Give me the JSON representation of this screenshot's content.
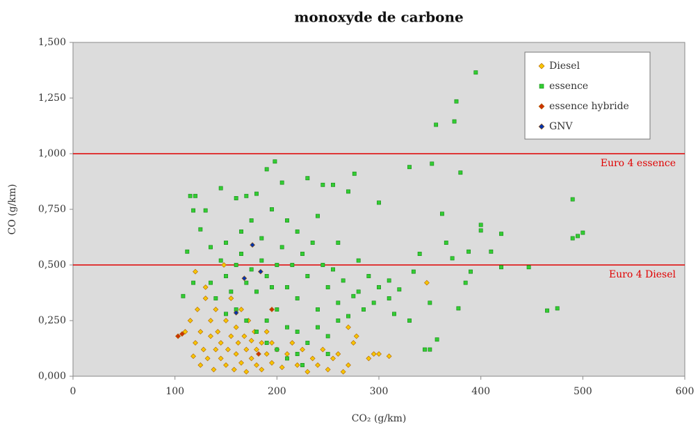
{
  "chart_data": {
    "type": "scatter",
    "title": "monoxyde de carbone",
    "xlabel": "CO₂ (g/km)",
    "ylabel": "CO (g/km)",
    "xlim": [
      0,
      600
    ],
    "xticks": [
      0,
      100,
      200,
      300,
      400,
      500,
      600
    ],
    "ylim": [
      0,
      1.5
    ],
    "yticks": [
      {
        "value": 0,
        "label": "0,000"
      },
      {
        "value": 0.25,
        "label": "0,250"
      },
      {
        "value": 0.5,
        "label": "0,500"
      },
      {
        "value": 0.75,
        "label": "0,750"
      },
      {
        "value": 1,
        "label": "1,000"
      },
      {
        "value": 1.25,
        "label": "1,250"
      },
      {
        "value": 1.5,
        "label": "1,500"
      }
    ],
    "legend_position": "upper right",
    "reference_lines": [
      {
        "value": 1,
        "label": "Euro 4 essence",
        "color": "#e00000"
      },
      {
        "value": 0.5,
        "label": "Euro 4 Diesel",
        "color": "#e00000"
      }
    ],
    "series": [
      {
        "name": "Diesel",
        "color": "#f7c600",
        "marker": "diamond",
        "x": [
          103,
          110,
          115,
          118,
          120,
          122,
          125,
          125,
          128,
          130,
          132,
          135,
          135,
          138,
          140,
          140,
          142,
          145,
          145,
          148,
          150,
          150,
          152,
          155,
          155,
          158,
          160,
          160,
          162,
          165,
          165,
          168,
          170,
          170,
          172,
          175,
          175,
          178,
          180,
          180,
          185,
          185,
          190,
          190,
          195,
          195,
          200,
          205,
          210,
          215,
          220,
          225,
          230,
          235,
          240,
          245,
          250,
          255,
          260,
          265,
          270,
          275,
          278,
          290,
          295,
          300,
          310,
          347,
          120,
          130,
          270
        ],
        "values": [
          0.18,
          0.2,
          0.25,
          0.09,
          0.15,
          0.3,
          0.05,
          0.2,
          0.12,
          0.35,
          0.08,
          0.18,
          0.25,
          0.03,
          0.12,
          0.3,
          0.2,
          0.08,
          0.15,
          0.5,
          0.25,
          0.05,
          0.12,
          0.18,
          0.35,
          0.03,
          0.1,
          0.22,
          0.15,
          0.06,
          0.3,
          0.18,
          0.12,
          0.02,
          0.25,
          0.08,
          0.16,
          0.2,
          0.05,
          0.12,
          0.15,
          0.03,
          0.1,
          0.2,
          0.06,
          0.15,
          0.12,
          0.04,
          0.1,
          0.15,
          0.05,
          0.12,
          0.02,
          0.08,
          0.05,
          0.12,
          0.03,
          0.08,
          0.1,
          0.02,
          0.05,
          0.15,
          0.18,
          0.08,
          0.1,
          0.1,
          0.09,
          0.42,
          0.47,
          0.4,
          0.22
        ]
      },
      {
        "name": "essence",
        "color": "#33cc33",
        "marker": "square",
        "x": [
          395,
          376,
          374,
          356,
          352,
          330,
          380,
          276,
          198,
          490,
          500,
          495,
          490,
          400,
          400,
          420,
          410,
          420,
          447,
          475,
          465,
          378,
          357,
          350,
          345,
          362,
          366,
          340,
          320,
          300,
          310,
          334,
          350,
          390,
          385,
          372,
          388,
          115,
          120,
          118,
          130,
          145,
          160,
          170,
          180,
          190,
          205,
          230,
          245,
          255,
          270,
          125,
          135,
          150,
          165,
          175,
          185,
          195,
          210,
          220,
          240,
          260,
          280,
          290,
          300,
          310,
          150,
          160,
          170,
          180,
          190,
          200,
          210,
          220,
          230,
          240,
          250,
          260,
          270,
          280,
          140,
          150,
          160,
          170,
          180,
          190,
          200,
          210,
          220,
          230,
          240,
          250,
          260,
          135,
          145,
          155,
          165,
          175,
          185,
          195,
          205,
          215,
          225,
          235,
          245,
          255,
          265,
          275,
          285,
          295,
          315,
          330,
          112,
          118,
          108,
          200,
          210,
          220,
          225,
          190,
          250
        ],
        "values": [
          1.365,
          1.235,
          1.145,
          1.13,
          0.955,
          0.94,
          0.915,
          0.91,
          0.965,
          0.795,
          0.645,
          0.63,
          0.62,
          0.68,
          0.655,
          0.64,
          0.56,
          0.49,
          0.49,
          0.305,
          0.295,
          0.305,
          0.165,
          0.12,
          0.12,
          0.73,
          0.6,
          0.55,
          0.39,
          0.78,
          0.43,
          0.47,
          0.33,
          0.47,
          0.42,
          0.53,
          0.56,
          0.81,
          0.81,
          0.745,
          0.745,
          0.845,
          0.8,
          0.81,
          0.82,
          0.93,
          0.87,
          0.89,
          0.86,
          0.86,
          0.83,
          0.66,
          0.58,
          0.6,
          0.65,
          0.7,
          0.62,
          0.75,
          0.7,
          0.65,
          0.72,
          0.6,
          0.52,
          0.45,
          0.4,
          0.35,
          0.45,
          0.5,
          0.42,
          0.38,
          0.45,
          0.5,
          0.4,
          0.35,
          0.45,
          0.3,
          0.4,
          0.33,
          0.27,
          0.38,
          0.35,
          0.28,
          0.3,
          0.25,
          0.2,
          0.25,
          0.3,
          0.22,
          0.2,
          0.15,
          0.22,
          0.18,
          0.25,
          0.42,
          0.52,
          0.38,
          0.55,
          0.48,
          0.52,
          0.4,
          0.58,
          0.5,
          0.55,
          0.6,
          0.5,
          0.48,
          0.43,
          0.36,
          0.3,
          0.33,
          0.28,
          0.25,
          0.56,
          0.42,
          0.36,
          0.12,
          0.08,
          0.1,
          0.05,
          0.15,
          0.1
        ]
      },
      {
        "name": "essence hybride",
        "color": "#cc3300",
        "marker": "diamond",
        "x": [
          103,
          107,
          195,
          182
        ],
        "values": [
          0.18,
          0.19,
          0.3,
          0.1
        ]
      },
      {
        "name": "GNV",
        "color": "#0033aa",
        "marker": "diamond",
        "x": [
          176,
          184,
          168,
          160
        ],
        "values": [
          0.59,
          0.47,
          0.44,
          0.285
        ]
      }
    ]
  }
}
